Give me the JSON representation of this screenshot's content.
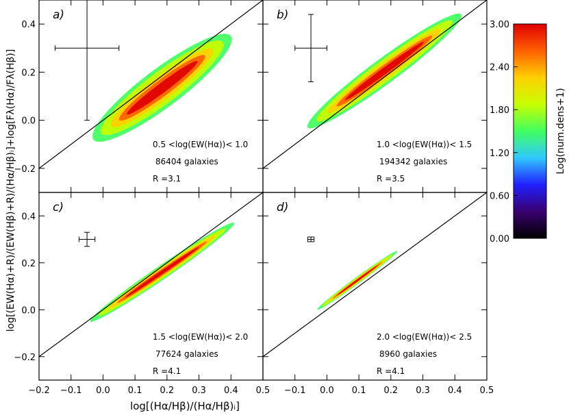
{
  "figure": {
    "xlabel": "log[(Hα/Hβ)/(Hα/Hβ)ᵢ]",
    "ylabel": "log[(EW(Hα)+R)/(EW(Hβ)+R)/(Hα/Hβ)ᵢ]+log[Fλ(Hα)/Fλ(Hβ)]"
  },
  "chart_data": [
    {
      "type": "density",
      "title": "a)",
      "annotations": [
        "0.5 <log(EW(Hα))< 1.0",
        "86404 galaxies",
        "R =3.1"
      ],
      "xlim": [
        -0.2,
        0.5
      ],
      "ylim": [
        -0.3,
        0.5
      ],
      "xticks": [
        -0.2,
        -0.1,
        0,
        0.1,
        0.2,
        0.3,
        0.4,
        0.5
      ],
      "yticks": [
        {
          "value": -0.2,
          "label": "−0.2"
        },
        {
          "value": 0,
          "label": "0.0"
        },
        0.2,
        0.4
      ],
      "density": {
        "major_axis": [
          [
            -0.03,
            -0.08
          ],
          [
            0.4,
            0.35
          ]
        ],
        "width": 0.1
      },
      "errorbar": {
        "x": -0.05,
        "y": 0.3,
        "xerr": 0.1,
        "yerr": 0.3
      },
      "line": {
        "x": [
          -0.2,
          0.5
        ],
        "y": [
          -0.2,
          0.5
        ]
      }
    },
    {
      "type": "density",
      "title": "b)",
      "annotations": [
        "1.0 <log(EW(Hα))< 1.5",
        "194342 galaxies",
        "R =3.5"
      ],
      "xlim": [
        -0.2,
        0.5
      ],
      "ylim": [
        -0.3,
        0.5
      ],
      "xticks": [
        -0.1,
        0,
        0.1,
        0.2,
        0.3,
        0.4,
        0.5
      ],
      "yticks": [
        -0.2,
        0,
        0.2,
        0.4
      ],
      "density": {
        "major_axis": [
          [
            -0.06,
            -0.03
          ],
          [
            0.42,
            0.44
          ]
        ],
        "width": 0.065
      },
      "errorbar": {
        "x": -0.05,
        "y": 0.3,
        "xerr": 0.05,
        "yerr": 0.14
      },
      "line": {
        "x": [
          -0.2,
          0.5
        ],
        "y": [
          -0.2,
          0.5
        ]
      }
    },
    {
      "type": "density",
      "title": "c)",
      "annotations": [
        "1.5 <log(EW(Hα))< 2.0",
        "77624 galaxies",
        "R =4.1"
      ],
      "xlim": [
        -0.2,
        0.5
      ],
      "ylim": [
        -0.3,
        0.5
      ],
      "xticks": [
        {
          "value": -0.2,
          "label": "−0.2"
        },
        {
          "value": -0.1,
          "label": "−0.1"
        },
        {
          "value": 0,
          "label": "0.0"
        },
        0.1,
        0.2,
        0.3,
        0.4,
        0.5
      ],
      "yticks": [
        {
          "value": -0.2,
          "label": "−0.2"
        },
        {
          "value": 0,
          "label": "0.0"
        },
        0.2,
        0.4
      ],
      "density": {
        "major_axis": [
          [
            -0.04,
            -0.05
          ],
          [
            0.41,
            0.37
          ]
        ],
        "width": 0.035
      },
      "errorbar": {
        "x": -0.05,
        "y": 0.3,
        "xerr": 0.025,
        "yerr": 0.03
      },
      "line": {
        "x": [
          -0.2,
          0.5
        ],
        "y": [
          -0.2,
          0.5
        ]
      }
    },
    {
      "type": "density",
      "title": "d)",
      "annotations": [
        "2.0 <log(EW(Hα))< 2.5",
        "8960 galaxies",
        "R =4.1"
      ],
      "xlim": [
        -0.2,
        0.5
      ],
      "ylim": [
        -0.3,
        0.5
      ],
      "xticks": [
        {
          "value": -0.1,
          "label": "−0.1"
        },
        {
          "value": 0,
          "label": "0.0"
        },
        0.1,
        0.2,
        0.3,
        0.4,
        0.5
      ],
      "yticks": [
        -0.2,
        0,
        0.2,
        0.4
      ],
      "density": {
        "major_axis": [
          [
            -0.03,
            0.0
          ],
          [
            0.22,
            0.25
          ]
        ],
        "width": 0.017
      },
      "errorbar": {
        "x": -0.05,
        "y": 0.3,
        "xerr": 0.01,
        "yerr": 0.01
      },
      "line": {
        "x": [
          -0.2,
          0.5
        ],
        "y": [
          -0.2,
          0.5
        ]
      }
    },
    {
      "type": "colorbar",
      "label": "Log(num.dens+1)",
      "ylim": [
        0,
        3
      ],
      "colors": [
        "#000000",
        "#3a0070",
        "#2020ff",
        "#30c8ff",
        "#40ff60",
        "#c8ff00",
        "#ffd000",
        "#ff6000",
        "#e00000"
      ],
      "yticks": [
        {
          "value": 0,
          "label": "0.00"
        },
        {
          "value": 0.6,
          "label": "0.60"
        },
        {
          "value": 1.2,
          "label": "1.20"
        },
        {
          "value": 1.8,
          "label": "1.80"
        },
        {
          "value": 2.4,
          "label": "2.40"
        },
        {
          "value": 3,
          "label": "3.00"
        }
      ]
    }
  ]
}
